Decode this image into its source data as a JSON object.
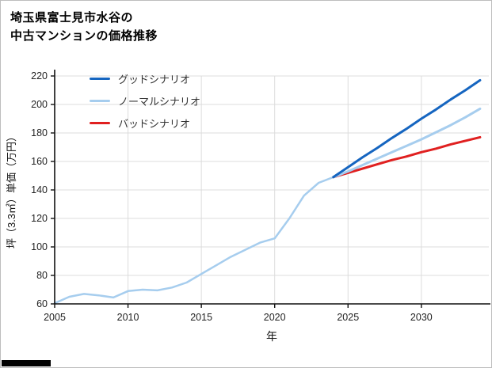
{
  "title": {
    "line1": "埼玉県富士見市水谷の",
    "line2": "中古マンションの価格推移"
  },
  "chart_data": {
    "type": "line",
    "title": "埼玉県富士見市水谷の中古マンションの価格推移",
    "xlabel": "年",
    "ylabel": "坪（3.3㎡）単価（万円）",
    "xlim": [
      2005,
      2034.6
    ],
    "ylim": [
      60,
      220
    ],
    "xticks": [
      2005,
      2010,
      2015,
      2020,
      2025,
      2030
    ],
    "yticks": [
      60,
      80,
      100,
      120,
      140,
      160,
      180,
      200,
      220
    ],
    "grid": true,
    "legend_position": "upper-left",
    "colors": {
      "good": "#1565c0",
      "normal": "#a6cdee",
      "bad": "#e02020",
      "grid": "#dcdcdc",
      "axis": "#111111"
    },
    "series": [
      {
        "name": "グッドシナリオ",
        "color": "#1565c0",
        "width": 3,
        "legend": true,
        "x": [
          2024,
          2025,
          2026,
          2027,
          2028,
          2029,
          2030,
          2031,
          2032,
          2033,
          2034
        ],
        "values": [
          149,
          156,
          163,
          169.5,
          176.5,
          183,
          190,
          196.5,
          203.5,
          210,
          217
        ]
      },
      {
        "name": "ノーマルシナリオ",
        "color": "#a6cdee",
        "width": 3,
        "legend": true,
        "x": [
          2024,
          2025,
          2026,
          2027,
          2028,
          2029,
          2030,
          2031,
          2032,
          2033,
          2034
        ],
        "values": [
          149,
          153,
          157.5,
          162,
          166.5,
          171,
          175.5,
          180.5,
          185.5,
          191,
          197
        ]
      },
      {
        "name": "バッドシナリオ",
        "color": "#e02020",
        "width": 3,
        "legend": true,
        "x": [
          2024,
          2025,
          2026,
          2027,
          2028,
          2029,
          2030,
          2031,
          2032,
          2033,
          2034
        ],
        "values": [
          149,
          152,
          155,
          158,
          161,
          163.5,
          166.5,
          169,
          172,
          174.5,
          177
        ]
      },
      {
        "id": "historical",
        "name": "",
        "color": "#a6cdee",
        "width": 2.5,
        "legend": false,
        "x": [
          2005,
          2006,
          2007,
          2008,
          2009,
          2010,
          2011,
          2012,
          2013,
          2014,
          2015,
          2016,
          2017,
          2018,
          2019,
          2020,
          2021,
          2022,
          2023,
          2024
        ],
        "values": [
          60.5,
          65,
          67,
          66,
          64.5,
          69,
          70,
          69.5,
          71.5,
          75,
          81,
          87,
          93,
          98,
          103,
          106,
          120,
          136,
          145,
          149
        ]
      }
    ]
  }
}
